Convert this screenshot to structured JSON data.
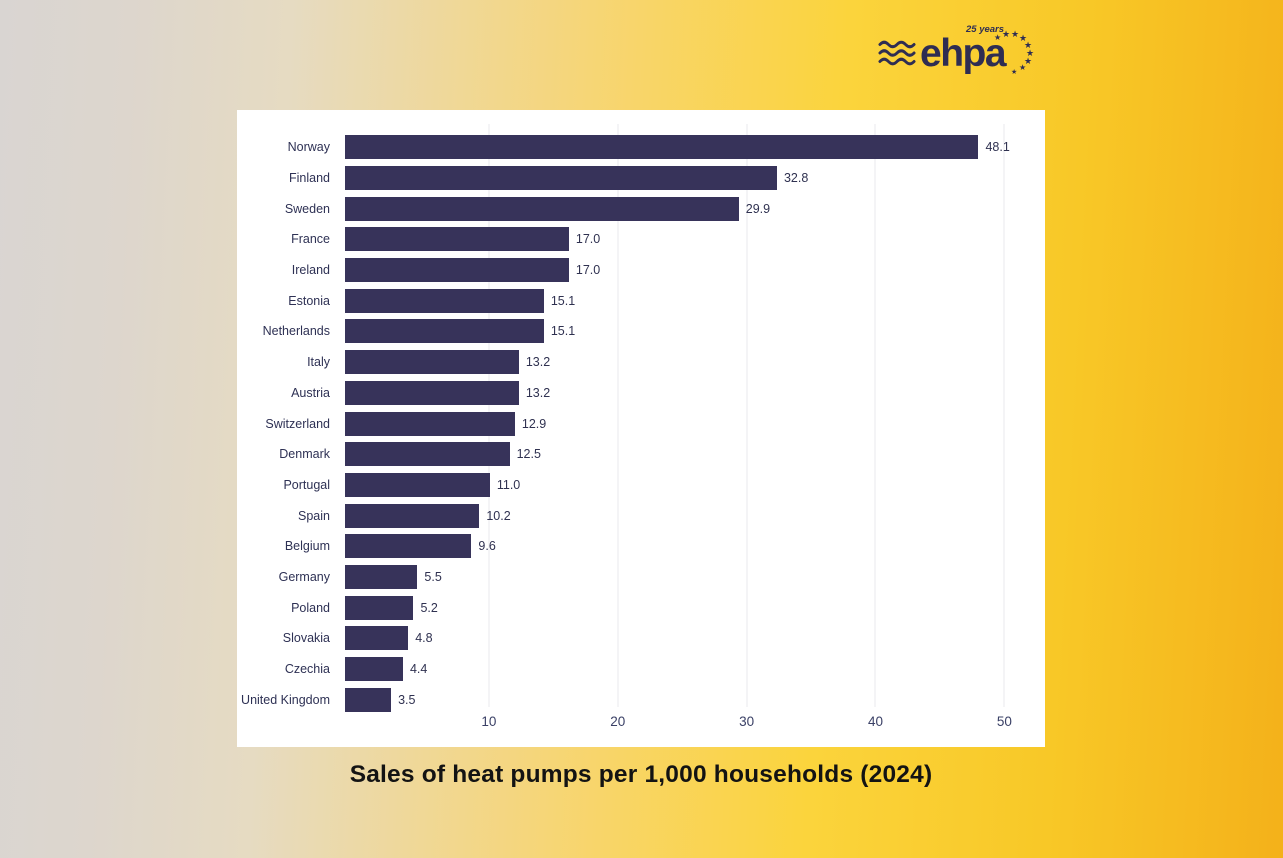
{
  "logo": {
    "brand": "ehpa",
    "anniversary": "25 years"
  },
  "title": "Sales of heat pumps per 1,000 households (2024)",
  "colors": {
    "bar": "#37335a",
    "logo_navy": "#2e2d52",
    "panel_bg": "#ffffff",
    "bg_left": "#d9d5d2",
    "bg_mid": "#fbd43c",
    "bg_right": "#f4b11a"
  },
  "chart_data": {
    "type": "bar",
    "orientation": "horizontal",
    "title": "Sales of heat pumps per 1,000 households (2024)",
    "categories": [
      "Norway",
      "Finland",
      "Sweden",
      "France",
      "Ireland",
      "Estonia",
      "Netherlands",
      "Italy",
      "Austria",
      "Switzerland",
      "Denmark",
      "Portugal",
      "Spain",
      "Belgium",
      "Germany",
      "Poland",
      "Slovakia",
      "Czechia",
      "United Kingdom"
    ],
    "values": [
      48.1,
      32.8,
      29.9,
      17.0,
      17.0,
      15.1,
      15.1,
      13.2,
      13.2,
      12.9,
      12.5,
      11.0,
      10.2,
      9.6,
      5.5,
      5.2,
      4.8,
      4.4,
      3.5
    ],
    "value_labels": [
      "48.1",
      "32.8",
      "29.9",
      "17.0",
      "17.0",
      "15.1",
      "15.1",
      "13.2",
      "13.2",
      "12.9",
      "12.5",
      "11.0",
      "10.2",
      "9.6",
      "5.5",
      "5.2",
      "4.8",
      "4.4",
      "3.5"
    ],
    "xticks": [
      10,
      20,
      30,
      40,
      50
    ],
    "xlim": [
      0,
      53
    ],
    "xlabel": "",
    "ylabel": "",
    "grid": true,
    "legend": false,
    "bar_color": "#37335a"
  }
}
